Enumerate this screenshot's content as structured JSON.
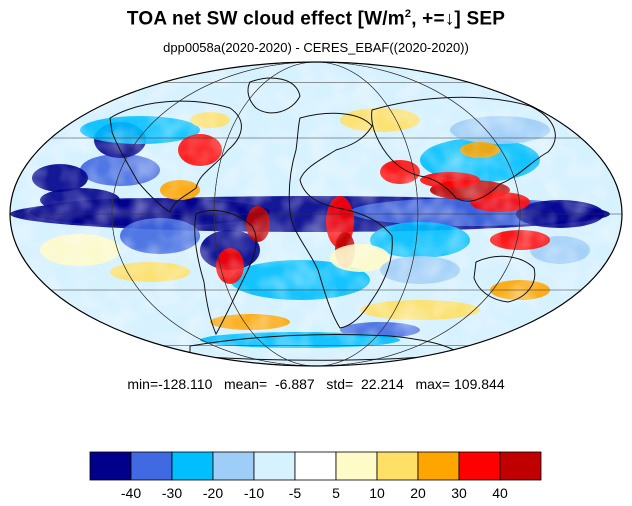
{
  "title": {
    "main": "TOA net SW cloud effect [W/m",
    "superscript": "2",
    "suffix": ", +=↓]  SEP"
  },
  "subtitle": "dpp0058a(2020-2020) - CERES_EBAF((2020-2020))",
  "stats": {
    "text": "min=-128.110   mean=  -6.887   std=  22.214   max= 109.844",
    "min": -128.11,
    "mean": -6.887,
    "std": 22.214,
    "max": 109.844
  },
  "colorbar": {
    "colors": [
      "#00008b",
      "#4169e1",
      "#00bfff",
      "#9ecdf7",
      "#d6f1ff",
      "#ffffff",
      "#fffbc8",
      "#ffe066",
      "#ffa500",
      "#ff0000",
      "#c00000"
    ],
    "tick_labels": [
      "-40",
      "-30",
      "-20",
      "-10",
      "-5",
      "5",
      "10",
      "20",
      "30",
      "40"
    ]
  },
  "map": {
    "projection": "Mollweide",
    "outline_color": "#000000",
    "grid_color": "#333333"
  }
}
